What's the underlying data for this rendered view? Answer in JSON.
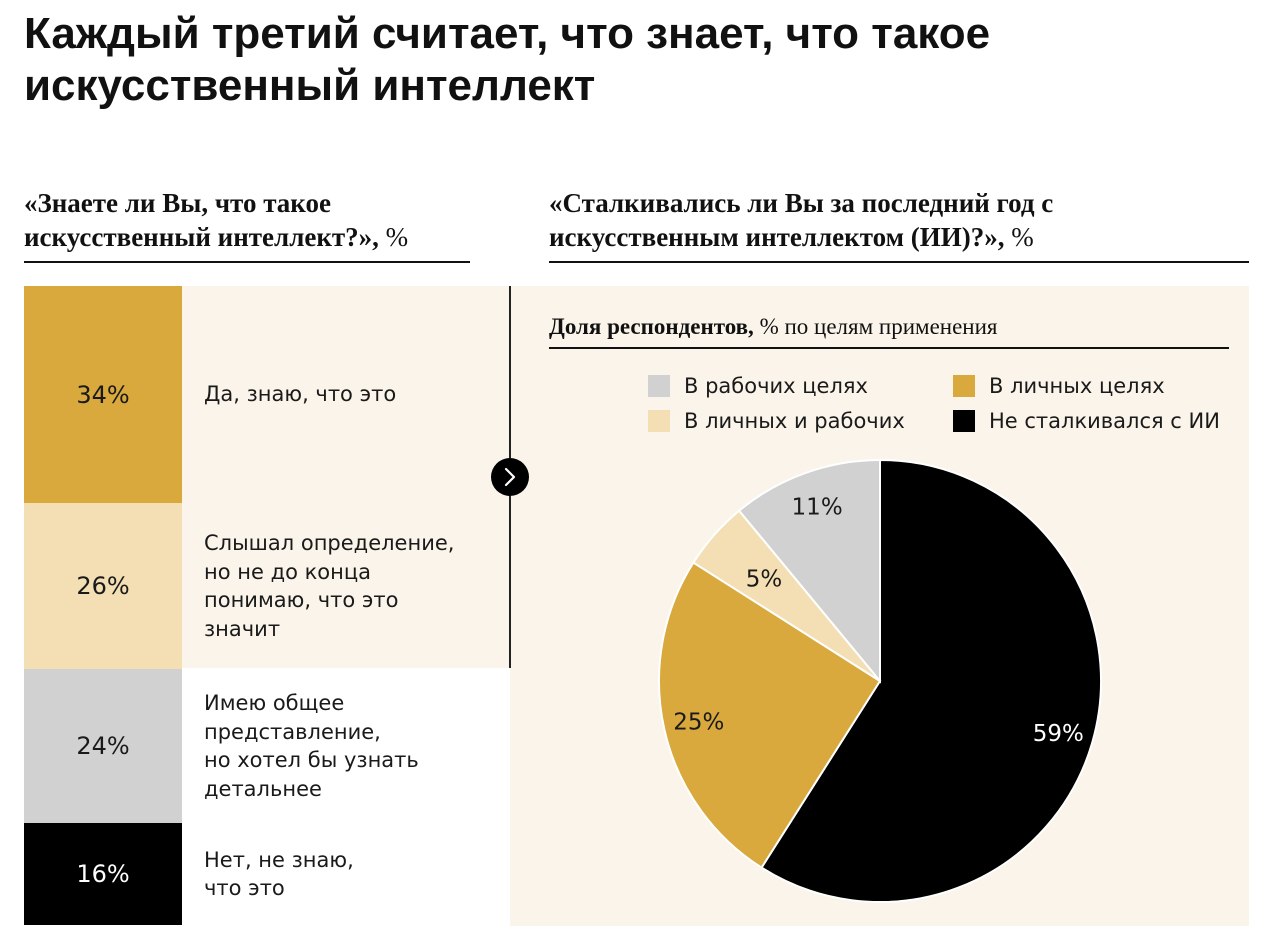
{
  "title": "Каждый третий считает, что знает, что такое искусственный интеллект",
  "left": {
    "question": "«Знаете ли Вы, что такое искусственный интеллект?»,",
    "unit": " %",
    "items": [
      {
        "value_text": "34%",
        "value": 34,
        "label": "Да, знаю, что это",
        "color": "#d9a93e",
        "text_color": "#1a1a1a"
      },
      {
        "value_text": "26%",
        "value": 26,
        "label": "Слышал определение,\nно не до конца\nпонимаю, что это\nзначит",
        "color": "#f3dfb3",
        "text_color": "#1a1a1a"
      },
      {
        "value_text": "24%",
        "value": 24,
        "label": "Имею общее\nпредставление,\nно хотел бы узнать\nдетальнее",
        "color": "#d1d1d1",
        "text_color": "#1a1a1a"
      },
      {
        "value_text": "16%",
        "value": 16,
        "label": "Нет, не знаю,\nчто это",
        "color": "#000000",
        "text_color": "#ffffff"
      }
    ]
  },
  "right": {
    "question": "«Сталкивались ли Вы за последний год с искусственным интеллектом (ИИ)?»,",
    "unit": " %",
    "share_title_bold": "Доля респондентов,",
    "share_title_rest": " % по целям применения"
  },
  "chart_data": {
    "type": "pie",
    "slices": [
      {
        "name": "Не сталкивался с ИИ",
        "value": 59,
        "label": "59%",
        "color": "#000000",
        "label_color": "#ffffff"
      },
      {
        "name": "В личных целях",
        "value": 25,
        "label": "25%",
        "color": "#d9a93e",
        "label_color": "#1a1a1a"
      },
      {
        "name": "В личных и рабочих",
        "value": 5,
        "label": "5%",
        "color": "#f3dfb3",
        "label_color": "#1a1a1a"
      },
      {
        "name": "В рабочих целях",
        "value": 11,
        "label": "11%",
        "color": "#d1d1d1",
        "label_color": "#1a1a1a"
      }
    ],
    "legend": [
      {
        "name": "В рабочих целях",
        "color": "#d1d1d1"
      },
      {
        "name": "В личных целях",
        "color": "#d9a93e"
      },
      {
        "name": "В личных и рабочих",
        "color": "#f3dfb3"
      },
      {
        "name": "Не сталкивался с ИИ",
        "color": "#000000"
      }
    ]
  },
  "icons": {
    "arrow": "chevron-right-icon"
  }
}
